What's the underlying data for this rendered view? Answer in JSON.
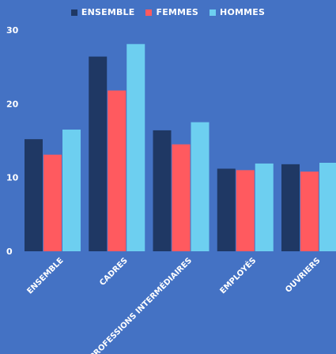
{
  "chart_data": {
    "type": "bar",
    "categories": [
      "ENSEMBLE",
      "CADRES",
      "PROFESSIONS INTERMÉDIAIRES",
      "EMPLOYÉS",
      "OUVRIERS"
    ],
    "series": [
      {
        "name": "ENSEMBLE",
        "color": "#1F3864",
        "values": [
          15.2,
          26.4,
          16.4,
          11.2,
          11.8
        ]
      },
      {
        "name": "FEMMES",
        "color": "#FF5A5F",
        "values": [
          13.1,
          21.8,
          14.5,
          11.0,
          10.8
        ]
      },
      {
        "name": "HOMMES",
        "color": "#6DCFF0",
        "values": [
          16.5,
          28.1,
          17.5,
          11.9,
          12.0
        ]
      }
    ],
    "yticks": [
      0,
      10,
      20,
      30
    ],
    "ylim": [
      0,
      30
    ],
    "legend_position": "top-center",
    "grid": false
  }
}
